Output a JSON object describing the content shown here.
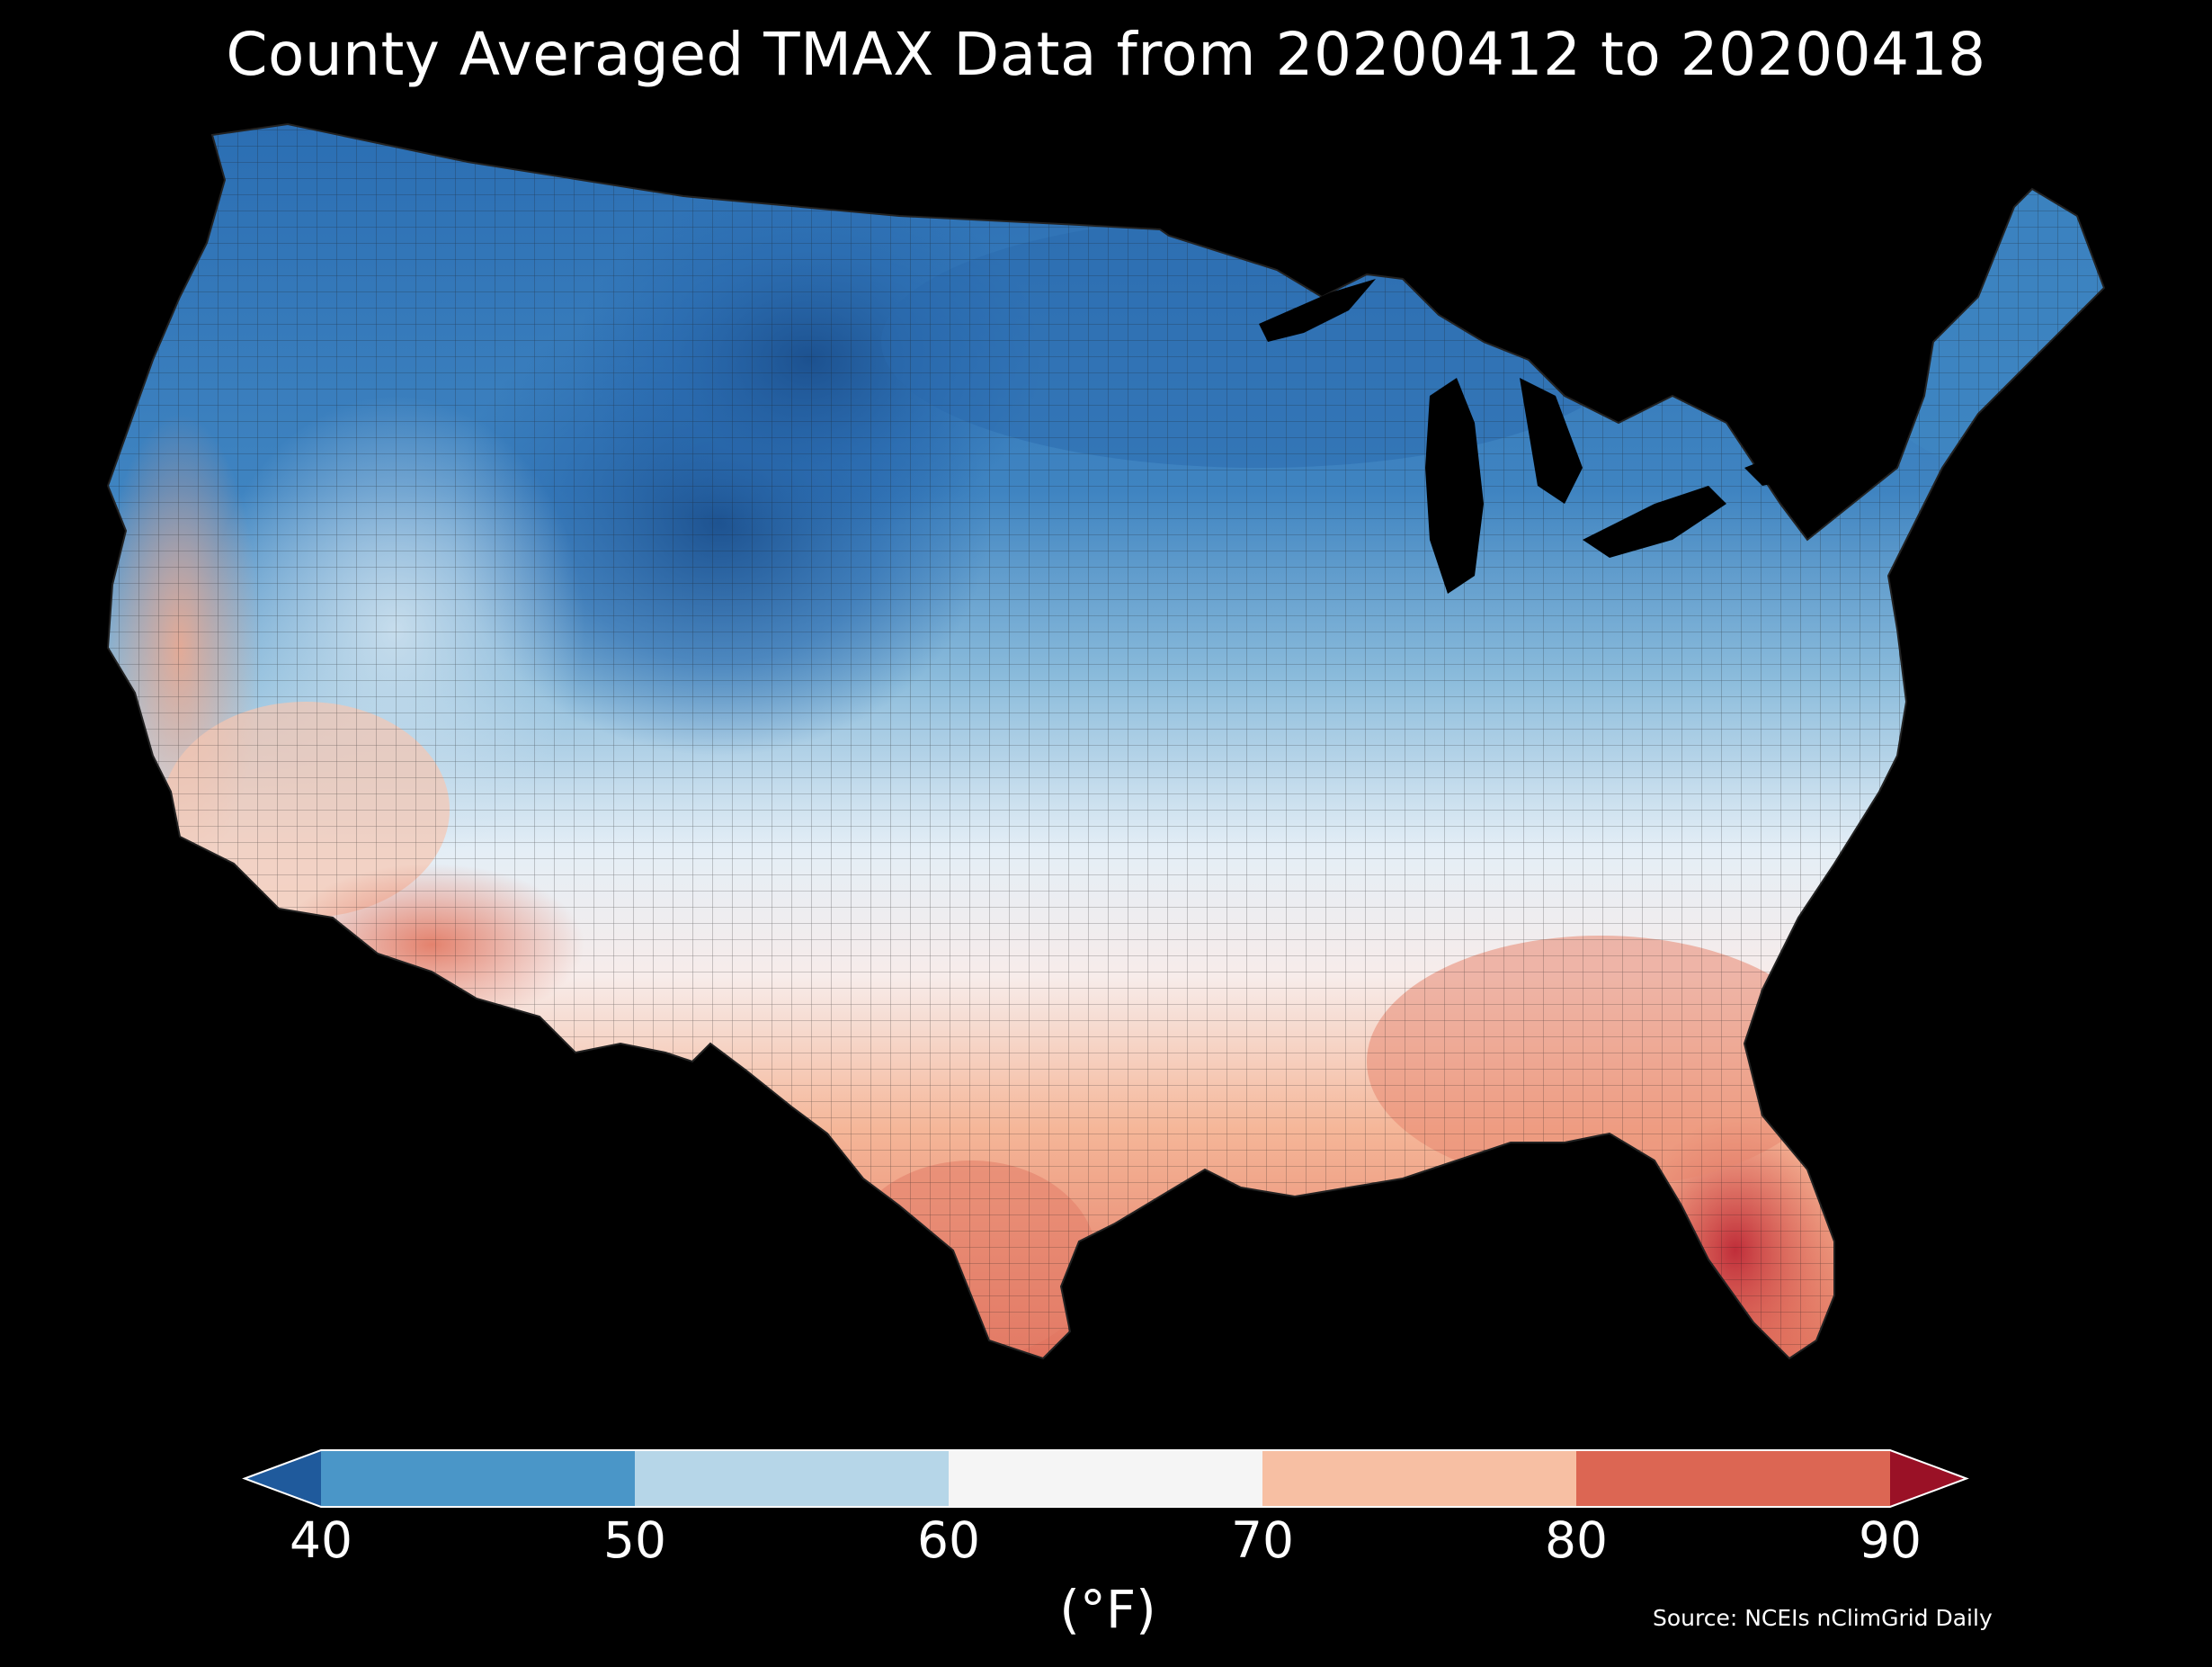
{
  "title": "County Averaged TMAX Data from 20200412 to 20200418",
  "colorbar": {
    "ticks": [
      "40",
      "50",
      "60",
      "70",
      "80",
      "90"
    ],
    "unit": "(°F)",
    "bins": [
      {
        "range": "<40",
        "color": "#1f5a9c"
      },
      {
        "range": "40-50",
        "color": "#4a96c8"
      },
      {
        "range": "50-60",
        "color": "#b6d6e8"
      },
      {
        "range": "60-70",
        "color": "#f5f5f5"
      },
      {
        "range": "70-80",
        "color": "#f7bfa3"
      },
      {
        "range": "80-90",
        "color": "#dc6653"
      },
      {
        "range": ">90",
        "color": "#9a1126"
      }
    ]
  },
  "source": "Source: NCEIs nClimGrid Daily"
}
